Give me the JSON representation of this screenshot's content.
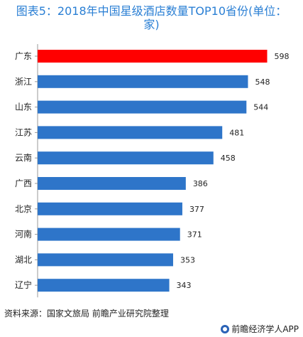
{
  "title_lines": [
    "图表5：2018年中国星级酒店数量TOP10省份(单位：",
    "家)"
  ],
  "source": "资料来源：国家文旅局 前瞻产业研究院整理",
  "brand": "前瞻经济学人APP",
  "colors": {
    "highlight": "#ff0000",
    "bar": "#2e75c9",
    "title": "#2a7fd4"
  },
  "chart_data": {
    "type": "bar",
    "orientation": "horizontal",
    "title": "图表5：2018年中国星级酒店数量TOP10省份(单位：家)",
    "categories": [
      "广东",
      "浙江",
      "山东",
      "江苏",
      "云南",
      "广西",
      "北京",
      "河南",
      "湖北",
      "辽宁"
    ],
    "values": [
      598,
      548,
      544,
      481,
      458,
      386,
      377,
      371,
      353,
      343
    ],
    "highlight_index": 0,
    "xlim": [
      0,
      610
    ],
    "grid": false,
    "data_labels": true
  }
}
